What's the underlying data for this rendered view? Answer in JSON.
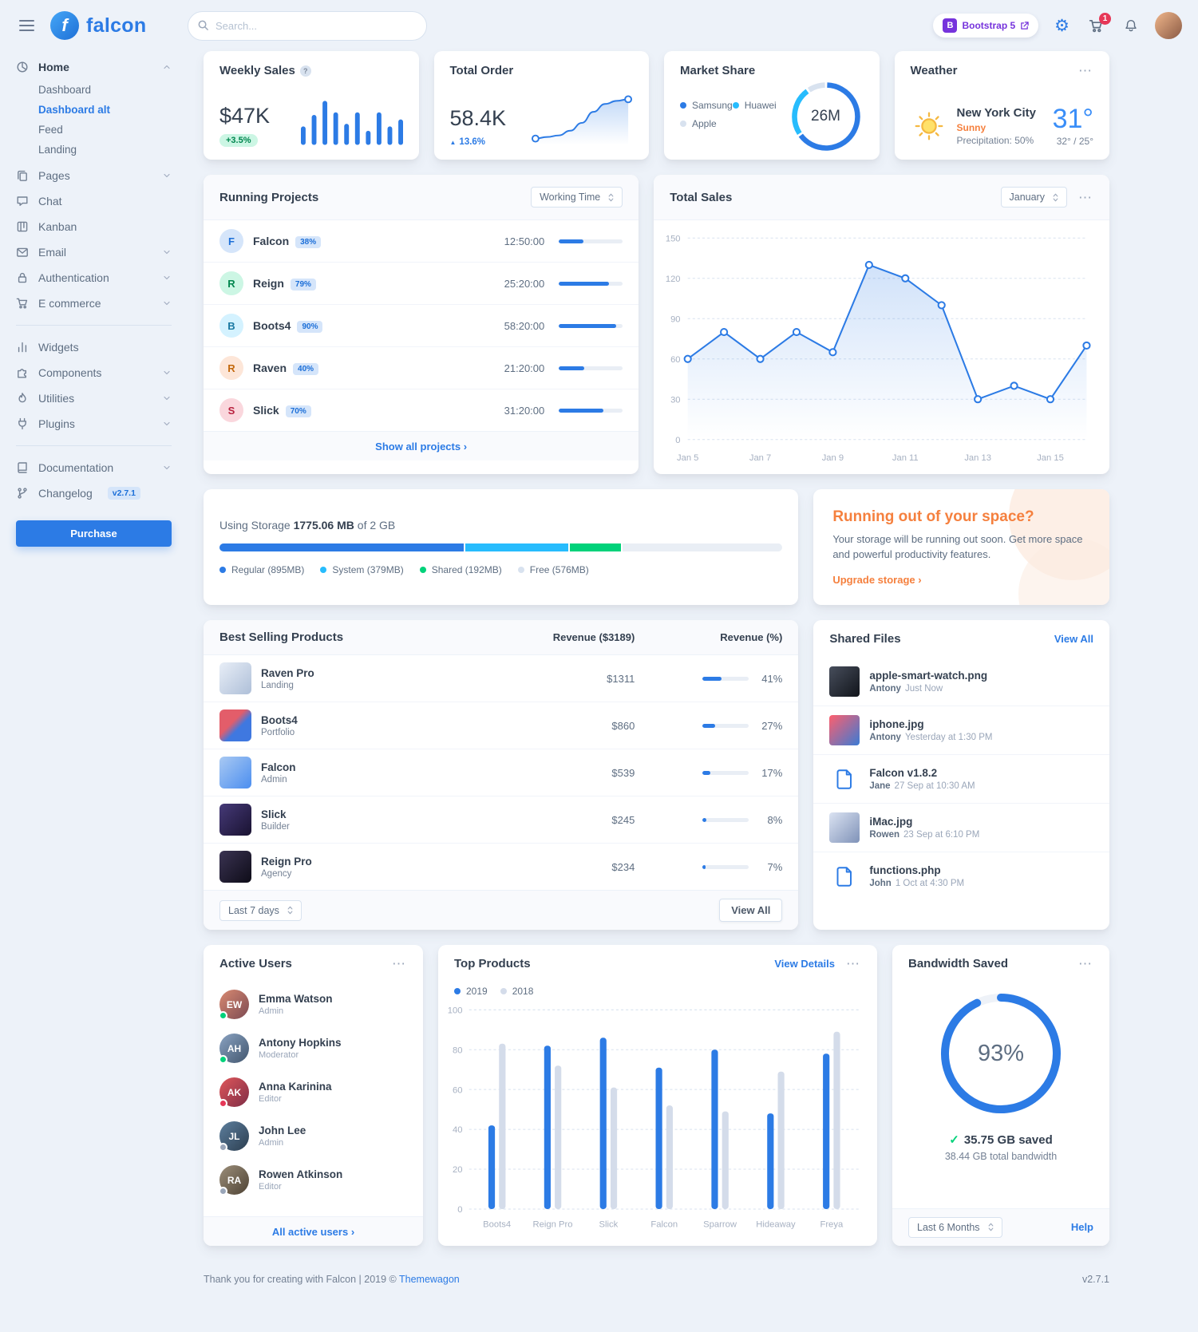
{
  "brand": {
    "name": "falcon"
  },
  "icons": {
    "ellipsis": "⋯",
    "caret_up": "▲",
    "check": "✓",
    "chevron_right": "›",
    "question": "?"
  },
  "topbar": {
    "search_placeholder": "Search...",
    "bootstrap_badge": "Bootstrap 5",
    "bootstrap_mark": "B",
    "cart_count": "1",
    "gear_glyph": "⚙"
  },
  "sidebar": {
    "groups": [
      {
        "items": [
          {
            "id": "home",
            "label": "Home",
            "icon": "chart-pie-icon",
            "expanded": true,
            "active": true,
            "children": [
              {
                "label": "Dashboard",
                "active": false
              },
              {
                "label": "Dashboard alt",
                "active": true
              },
              {
                "label": "Feed",
                "active": false
              },
              {
                "label": "Landing",
                "active": false
              }
            ]
          },
          {
            "id": "pages",
            "label": "Pages",
            "icon": "copy-icon",
            "chevron": true
          },
          {
            "id": "chat",
            "label": "Chat",
            "icon": "comments-icon"
          },
          {
            "id": "kanban",
            "label": "Kanban",
            "icon": "kanban-icon"
          },
          {
            "id": "email",
            "label": "Email",
            "icon": "envelope-icon",
            "chevron": true
          },
          {
            "id": "authentication",
            "label": "Authentication",
            "icon": "lock-icon",
            "chevron": true
          },
          {
            "id": "ecommerce",
            "label": "E commerce",
            "icon": "cart-icon",
            "chevron": true
          }
        ]
      },
      {
        "items": [
          {
            "id": "widgets",
            "label": "Widgets",
            "icon": "poll-icon"
          },
          {
            "id": "components",
            "label": "Components",
            "icon": "puzzle-icon",
            "chevron": true
          },
          {
            "id": "utilities",
            "label": "Utilities",
            "icon": "fire-icon",
            "chevron": true
          },
          {
            "id": "plugins",
            "label": "Plugins",
            "icon": "plug-icon",
            "chevron": true
          }
        ]
      },
      {
        "items": [
          {
            "id": "documentation",
            "label": "Documentation",
            "icon": "book-icon",
            "chevron": true
          },
          {
            "id": "changelog",
            "label": "Changelog",
            "icon": "code-branch-icon",
            "badge": "v2.7.1"
          }
        ]
      }
    ],
    "purchase_label": "Purchase"
  },
  "weekly_sales": {
    "title": "Weekly Sales",
    "value": "$47K",
    "badge": "+3.5%",
    "chart_data": {
      "type": "bar",
      "values": [
        42,
        68,
        100,
        74,
        48,
        74,
        32,
        74,
        42,
        58
      ]
    }
  },
  "total_order": {
    "title": "Total Order",
    "value": "58.4K",
    "delta": "13.6%",
    "chart_data": {
      "type": "line",
      "values": [
        12,
        13,
        14,
        17,
        22,
        29,
        34,
        36,
        37
      ]
    }
  },
  "market_share": {
    "title": "Market Share",
    "center_label": "26M",
    "chart_data": {
      "type": "donut",
      "series": [
        {
          "name": "Samsung",
          "value": 17,
          "color": "#2c7be5"
        },
        {
          "name": "Huawei",
          "value": 6.5,
          "color": "#27bcfd"
        },
        {
          "name": "Apple",
          "value": 2.5,
          "color": "#d8e2ef"
        }
      ]
    }
  },
  "weather": {
    "title": "Weather",
    "city": "New York City",
    "condition": "Sunny",
    "precipitation": "Precipitation: 50%",
    "temp": "31°",
    "high_low": "32° / 25°"
  },
  "running_projects": {
    "title": "Running Projects",
    "filter": "Working Time",
    "rows": [
      {
        "initial": "F",
        "name": "Falcon",
        "percent": "38%",
        "time": "12:50:00",
        "progress": 38,
        "color": "#1c6fd8",
        "bg": "#d5e5fa"
      },
      {
        "initial": "R",
        "name": "Reign",
        "percent": "79%",
        "time": "25:20:00",
        "progress": 79,
        "color": "#00864e",
        "bg": "#ccf6e4"
      },
      {
        "initial": "B",
        "name": "Boots4",
        "percent": "90%",
        "time": "58:20:00",
        "progress": 90,
        "color": "#1978a2",
        "bg": "#d4f2ff"
      },
      {
        "initial": "R",
        "name": "Raven",
        "percent": "40%",
        "time": "21:20:00",
        "progress": 40,
        "color": "#c4690d",
        "bg": "#fde6d8"
      },
      {
        "initial": "S",
        "name": "Slick",
        "percent": "70%",
        "time": "31:20:00",
        "progress": 70,
        "color": "#b81f3d",
        "bg": "#fad7dd"
      }
    ],
    "footer_link": "Show all projects"
  },
  "total_sales": {
    "title": "Total Sales",
    "filter": "January",
    "chart_data": {
      "type": "line",
      "x": [
        "Jan 5",
        "Jan 6",
        "Jan 7",
        "Jan 8",
        "Jan 9",
        "Jan 10",
        "Jan 11",
        "Jan 12",
        "Jan 13",
        "Jan 14",
        "Jan 15",
        "Jan 16"
      ],
      "values": [
        60,
        80,
        60,
        80,
        65,
        130,
        120,
        100,
        30,
        40,
        30,
        70
      ],
      "yticks": [
        0,
        30,
        60,
        90,
        120,
        150
      ],
      "ylim": [
        0,
        150
      ],
      "xtick_every": 2,
      "grid": true,
      "line_color": "#2c7be5"
    }
  },
  "storage": {
    "label_prefix": "Using Storage",
    "used": "1775.06 MB",
    "suffix": "of 2 GB",
    "total_mb": 2048,
    "segments": [
      {
        "label": "Regular (895MB)",
        "mb": 895,
        "color": "#2c7be5",
        "dot": "#2c7be5"
      },
      {
        "label": "System (379MB)",
        "mb": 379,
        "color": "#27bcfd",
        "dot": "#27bcfd"
      },
      {
        "label": "Shared (192MB)",
        "mb": 192,
        "color": "#00d27a",
        "dot": "#00d27a"
      },
      {
        "label": "Free (576MB)",
        "mb": 576,
        "color": "#e9eef5",
        "dot": "#d8e2ef"
      }
    ]
  },
  "space_cta": {
    "title": "Running out of your space?",
    "body": "Your storage will be running out soon. Get more space and powerful productivity features.",
    "link": "Upgrade storage"
  },
  "best_selling": {
    "title": "Best Selling Products",
    "col_revenue": "Revenue ($3189)",
    "col_percent": "Revenue (%)",
    "rows": [
      {
        "name": "Raven Pro",
        "category": "Landing",
        "revenue": "$1311",
        "percent": "41%",
        "progress": 41
      },
      {
        "name": "Boots4",
        "category": "Portfolio",
        "revenue": "$860",
        "percent": "27%",
        "progress": 27
      },
      {
        "name": "Falcon",
        "category": "Admin",
        "revenue": "$539",
        "percent": "17%",
        "progress": 17
      },
      {
        "name": "Slick",
        "category": "Builder",
        "revenue": "$245",
        "percent": "8%",
        "progress": 8
      },
      {
        "name": "Reign Pro",
        "category": "Agency",
        "revenue": "$234",
        "percent": "7%",
        "progress": 7
      }
    ],
    "filter": "Last 7 days",
    "view_all": "View All"
  },
  "shared_files": {
    "title": "Shared Files",
    "view_all": "View All",
    "files": [
      {
        "name": "apple-smart-watch.png",
        "by": "Antony",
        "when": "Just Now",
        "kind": "image"
      },
      {
        "name": "iphone.jpg",
        "by": "Antony",
        "when": "Yesterday at 1:30 PM",
        "kind": "image"
      },
      {
        "name": "Falcon v1.8.2",
        "by": "Jane",
        "when": "27 Sep at 10:30 AM",
        "kind": "archive"
      },
      {
        "name": "iMac.jpg",
        "by": "Rowen",
        "when": "23 Sep at 6:10 PM",
        "kind": "image"
      },
      {
        "name": "functions.php",
        "by": "John",
        "when": "1 Oct at 4:30 PM",
        "kind": "code"
      }
    ]
  },
  "active_users": {
    "title": "Active Users",
    "users": [
      {
        "name": "Emma Watson",
        "role": "Admin",
        "status": "online"
      },
      {
        "name": "Antony Hopkins",
        "role": "Moderator",
        "status": "online"
      },
      {
        "name": "Anna Karinina",
        "role": "Editor",
        "status": "busy"
      },
      {
        "name": "John Lee",
        "role": "Admin",
        "status": "offline"
      },
      {
        "name": "Rowen Atkinson",
        "role": "Editor",
        "status": "offline"
      }
    ],
    "footer_link": "All active users"
  },
  "top_products": {
    "title": "Top Products",
    "view_details": "View Details",
    "chart_data": {
      "type": "bar",
      "categories": [
        "Boots4",
        "Reign Pro",
        "Slick",
        "Falcon",
        "Sparrow",
        "Hideaway",
        "Freya"
      ],
      "series": [
        {
          "name": "2019",
          "color": "#2c7be5",
          "values": [
            42,
            82,
            86,
            71,
            80,
            48,
            78
          ]
        },
        {
          "name": "2018",
          "color": "#d4dcea",
          "values": [
            83,
            72,
            61,
            52,
            49,
            69,
            89
          ]
        }
      ],
      "yticks": [
        0,
        20,
        40,
        60,
        80,
        100
      ],
      "ylim": [
        0,
        100
      ],
      "grid": true,
      "legend_position": "top-left"
    }
  },
  "bandwidth": {
    "title": "Bandwidth Saved",
    "percent": 93,
    "percent_label": "93%",
    "saved": "35.75 GB saved",
    "total": "38.44 GB total bandwidth",
    "filter": "Last 6 Months",
    "help": "Help"
  },
  "page_footer": {
    "thanks": "Thank you for creating with Falcon | 2019 © ",
    "brand_link": "Themewagon",
    "version": "v2.7.1"
  }
}
